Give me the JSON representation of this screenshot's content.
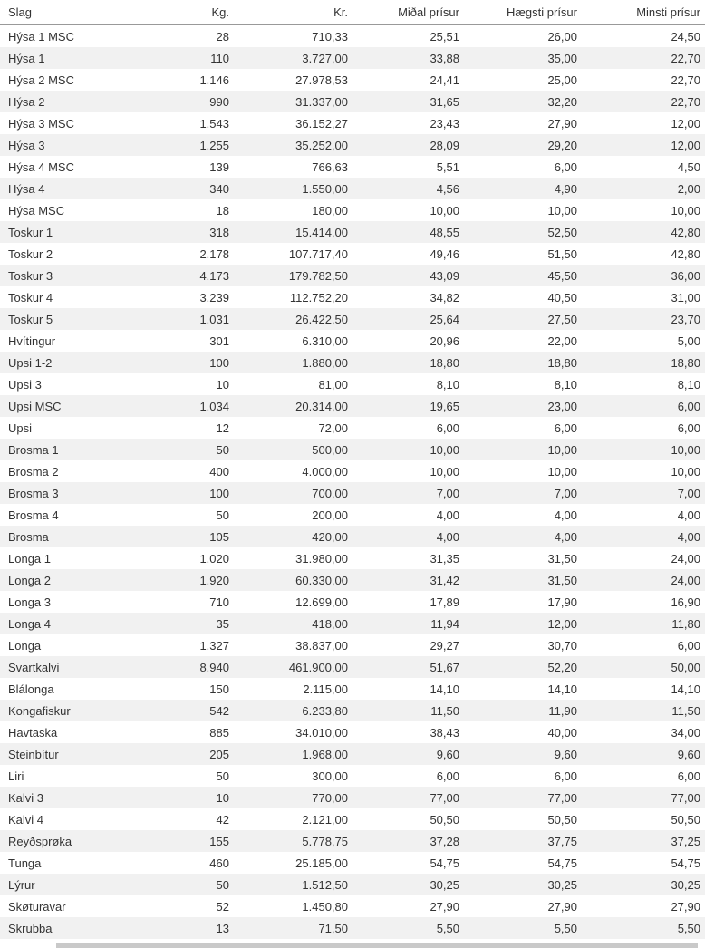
{
  "table": {
    "headers": [
      "Slag",
      "Kg.",
      "Kr.",
      "Miðal prísur",
      "Hægsti prísur",
      "Minsti prísur"
    ],
    "rows": [
      [
        "Hýsa 1 MSC",
        "28",
        "710,33",
        "25,51",
        "26,00",
        "24,50"
      ],
      [
        "Hýsa 1",
        "110",
        "3.727,00",
        "33,88",
        "35,00",
        "22,70"
      ],
      [
        "Hýsa 2 MSC",
        "1.146",
        "27.978,53",
        "24,41",
        "25,00",
        "22,70"
      ],
      [
        "Hýsa 2",
        "990",
        "31.337,00",
        "31,65",
        "32,20",
        "22,70"
      ],
      [
        "Hýsa 3 MSC",
        "1.543",
        "36.152,27",
        "23,43",
        "27,90",
        "12,00"
      ],
      [
        "Hýsa 3",
        "1.255",
        "35.252,00",
        "28,09",
        "29,20",
        "12,00"
      ],
      [
        "Hýsa 4 MSC",
        "139",
        "766,63",
        "5,51",
        "6,00",
        "4,50"
      ],
      [
        "Hýsa 4",
        "340",
        "1.550,00",
        "4,56",
        "4,90",
        "2,00"
      ],
      [
        "Hýsa MSC",
        "18",
        "180,00",
        "10,00",
        "10,00",
        "10,00"
      ],
      [
        "Toskur 1",
        "318",
        "15.414,00",
        "48,55",
        "52,50",
        "42,80"
      ],
      [
        "Toskur 2",
        "2.178",
        "107.717,40",
        "49,46",
        "51,50",
        "42,80"
      ],
      [
        "Toskur 3",
        "4.173",
        "179.782,50",
        "43,09",
        "45,50",
        "36,00"
      ],
      [
        "Toskur 4",
        "3.239",
        "112.752,20",
        "34,82",
        "40,50",
        "31,00"
      ],
      [
        "Toskur 5",
        "1.031",
        "26.422,50",
        "25,64",
        "27,50",
        "23,70"
      ],
      [
        "Hvítingur",
        "301",
        "6.310,00",
        "20,96",
        "22,00",
        "5,00"
      ],
      [
        "Upsi 1-2",
        "100",
        "1.880,00",
        "18,80",
        "18,80",
        "18,80"
      ],
      [
        "Upsi 3",
        "10",
        "81,00",
        "8,10",
        "8,10",
        "8,10"
      ],
      [
        "Upsi MSC",
        "1.034",
        "20.314,00",
        "19,65",
        "23,00",
        "6,00"
      ],
      [
        "Upsi",
        "12",
        "72,00",
        "6,00",
        "6,00",
        "6,00"
      ],
      [
        "Brosma 1",
        "50",
        "500,00",
        "10,00",
        "10,00",
        "10,00"
      ],
      [
        "Brosma 2",
        "400",
        "4.000,00",
        "10,00",
        "10,00",
        "10,00"
      ],
      [
        "Brosma 3",
        "100",
        "700,00",
        "7,00",
        "7,00",
        "7,00"
      ],
      [
        "Brosma 4",
        "50",
        "200,00",
        "4,00",
        "4,00",
        "4,00"
      ],
      [
        "Brosma",
        "105",
        "420,00",
        "4,00",
        "4,00",
        "4,00"
      ],
      [
        "Longa 1",
        "1.020",
        "31.980,00",
        "31,35",
        "31,50",
        "24,00"
      ],
      [
        "Longa 2",
        "1.920",
        "60.330,00",
        "31,42",
        "31,50",
        "24,00"
      ],
      [
        "Longa 3",
        "710",
        "12.699,00",
        "17,89",
        "17,90",
        "16,90"
      ],
      [
        "Longa 4",
        "35",
        "418,00",
        "11,94",
        "12,00",
        "11,80"
      ],
      [
        "Longa",
        "1.327",
        "38.837,00",
        "29,27",
        "30,70",
        "6,00"
      ],
      [
        "Svartkalvi",
        "8.940",
        "461.900,00",
        "51,67",
        "52,20",
        "50,00"
      ],
      [
        "Blálonga",
        "150",
        "2.115,00",
        "14,10",
        "14,10",
        "14,10"
      ],
      [
        "Kongafiskur",
        "542",
        "6.233,80",
        "11,50",
        "11,90",
        "11,50"
      ],
      [
        "Havtaska",
        "885",
        "34.010,00",
        "38,43",
        "40,00",
        "34,00"
      ],
      [
        "Steinbítur",
        "205",
        "1.968,00",
        "9,60",
        "9,60",
        "9,60"
      ],
      [
        "Liri",
        "50",
        "300,00",
        "6,00",
        "6,00",
        "6,00"
      ],
      [
        "Kalvi 3",
        "10",
        "770,00",
        "77,00",
        "77,00",
        "77,00"
      ],
      [
        "Kalvi 4",
        "42",
        "2.121,00",
        "50,50",
        "50,50",
        "50,50"
      ],
      [
        "Reyðsprøka",
        "155",
        "5.778,75",
        "37,28",
        "37,75",
        "37,25"
      ],
      [
        "Tunga",
        "460",
        "25.185,00",
        "54,75",
        "54,75",
        "54,75"
      ],
      [
        "Lýrur",
        "50",
        "1.512,50",
        "30,25",
        "30,25",
        "30,25"
      ],
      [
        "Skøturavar",
        "52",
        "1.450,80",
        "27,90",
        "27,90",
        "27,90"
      ],
      [
        "Skrubba",
        "13",
        "71,50",
        "5,50",
        "5,50",
        "5,50"
      ]
    ],
    "stripe_color": "#f1f1f1",
    "header_border_color": "#999999",
    "text_color": "#333333"
  },
  "bottom_bar": {
    "color": "#c9c9c9"
  }
}
